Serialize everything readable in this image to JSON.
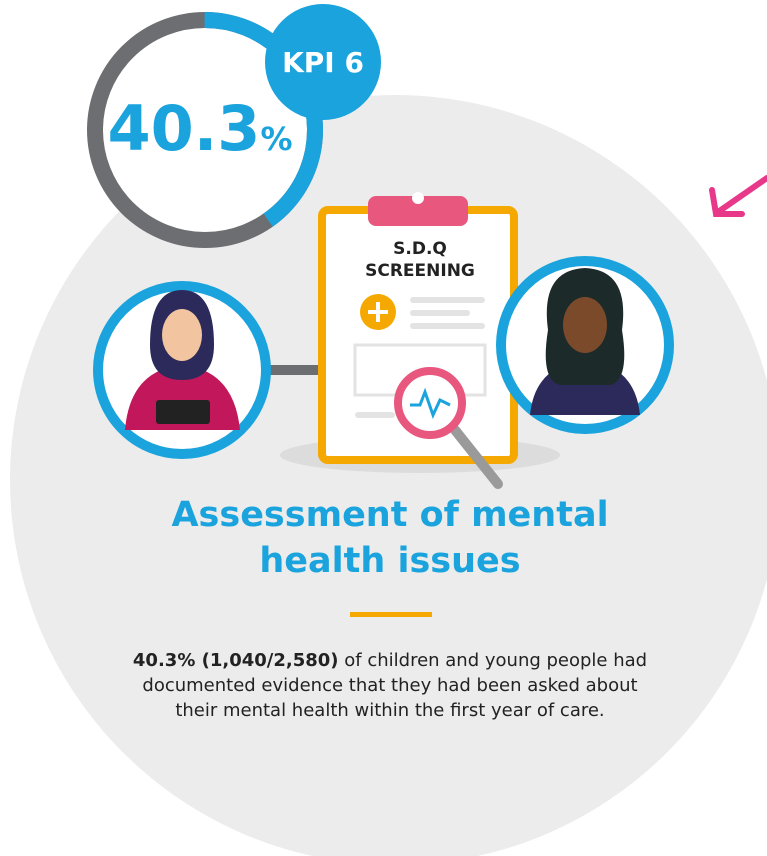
{
  "kpi": {
    "label": "KPI 6",
    "value": 40.3,
    "unit": "%"
  },
  "clipboard": {
    "line1": "S.D.Q",
    "line2": "SCREENING"
  },
  "title": "Assessment of mental health issues",
  "body": {
    "bold": "40.3% (1,040/2,580)",
    "text": "of children and young people had documented evidence that they had been asked about their mental health within the first year of care."
  }
}
